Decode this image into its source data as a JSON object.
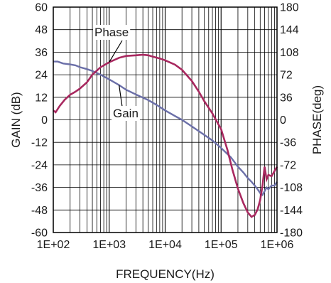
{
  "chart_data": {
    "type": "line",
    "title": "",
    "xlabel": "FREQUENCY(Hz)",
    "ylabel_left": "GAIN (dB)",
    "ylabel_right": "PHASE(deg)",
    "x_scale": "log",
    "xlim": [
      100,
      1000000
    ],
    "ylim_left": [
      -60,
      60
    ],
    "ylim_right": [
      -180,
      180
    ],
    "grid": true,
    "x_tick_labels": [
      "1E+02",
      "1E+03",
      "1E+04",
      "1E+05",
      "1E+06"
    ],
    "x_tick_values": [
      100,
      1000,
      10000,
      100000,
      1000000
    ],
    "y_left_ticks": [
      "60",
      "48",
      "36",
      "24",
      "12",
      "0",
      "-12",
      "-24",
      "-36",
      "-48",
      "-60"
    ],
    "y_right_ticks": [
      "180",
      "144",
      "108",
      "72",
      "36",
      "0",
      "-36",
      "-72",
      "-108",
      "-144",
      "-180"
    ],
    "colors": {
      "gain": "#6b6fa8",
      "phase": "#a8285f",
      "grid": "#000000"
    },
    "annotations": [
      {
        "text": "Phase",
        "series": "phase"
      },
      {
        "text": "Gain",
        "series": "gain"
      }
    ],
    "series": [
      {
        "name": "Gain",
        "axis": "left",
        "x": [
          100,
          120,
          150,
          200,
          250,
          300,
          400,
          500,
          700,
          1000,
          1500,
          2000,
          3000,
          5000,
          7000,
          10000,
          15000,
          20000,
          30000,
          50000,
          70000,
          100000,
          150000,
          200000,
          250000,
          300000,
          350000,
          400000,
          450000,
          500000,
          550000,
          600000,
          650000,
          700000,
          800000,
          900000,
          1000000
        ],
        "y": [
          31,
          31,
          30,
          29.5,
          29,
          28,
          27,
          26,
          24,
          21.5,
          18.5,
          16,
          13.5,
          10.5,
          8,
          5,
          2,
          0,
          -3.5,
          -8,
          -11,
          -15,
          -20,
          -25,
          -28,
          -31,
          -33,
          -35,
          -37,
          -39,
          -40,
          -38,
          -36,
          -37,
          -35,
          -35,
          -33
        ]
      },
      {
        "name": "Phase",
        "axis": "right",
        "x": [
          100,
          110,
          130,
          160,
          200,
          250,
          300,
          400,
          500,
          700,
          1000,
          1500,
          2000,
          3000,
          4000,
          5000,
          6000,
          8000,
          10000,
          15000,
          20000,
          30000,
          40000,
          50000,
          70000,
          100000,
          130000,
          160000,
          200000,
          250000,
          300000,
          350000,
          400000,
          450000,
          500000,
          550000,
          600000,
          650000,
          700000,
          800000,
          900000,
          1000000
        ],
        "y": [
          15,
          12,
          22,
          32,
          40,
          45,
          50,
          60,
          72,
          84,
          92,
          99,
          102,
          103,
          104,
          103,
          101,
          98,
          95,
          88,
          80,
          62,
          45,
          30,
          10,
          -15,
          -48,
          -80,
          -110,
          -133,
          -148,
          -155,
          -152,
          -143,
          -128,
          -105,
          -75,
          -95,
          -88,
          -90,
          -82,
          -75
        ]
      }
    ]
  }
}
